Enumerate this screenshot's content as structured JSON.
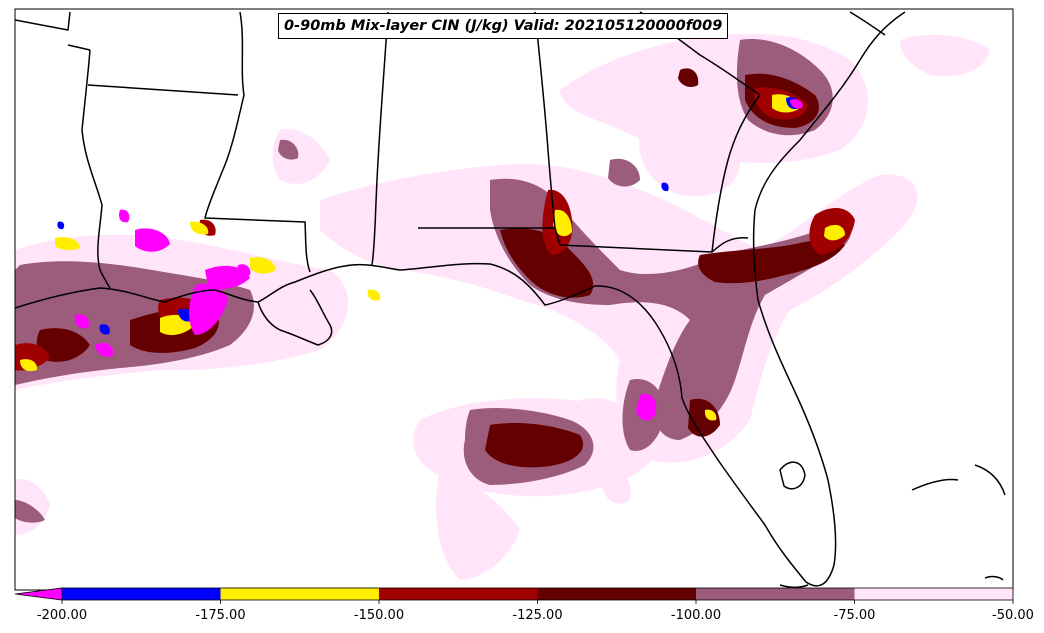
{
  "title": "0-90mb Mix-layer CIN (J/kg) Valid: 202105120000f009",
  "colorbar": {
    "ticks": [
      "-200.00",
      "-175.00",
      "-150.00",
      "-125.00",
      "-100.00",
      "-75.00",
      "-50.00"
    ],
    "bins": [
      {
        "from": -225,
        "to": -200,
        "color": "#ff00ff"
      },
      {
        "from": -200,
        "to": -175,
        "color": "#0000ff"
      },
      {
        "from": -175,
        "to": -150,
        "color": "#ffee00"
      },
      {
        "from": -150,
        "to": -125,
        "color": "#a00000"
      },
      {
        "from": -125,
        "to": -100,
        "color": "#640000"
      },
      {
        "from": -100,
        "to": -75,
        "color": "#9c5c7c"
      },
      {
        "from": -75,
        "to": -50,
        "color": "#ffe4fa"
      }
    ]
  }
}
